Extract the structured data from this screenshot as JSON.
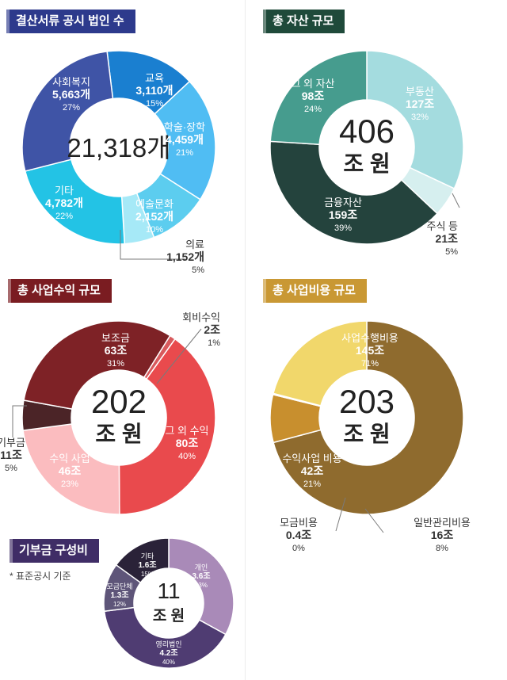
{
  "sections": {
    "filings": {
      "title": "결산서류 공시 법인 수",
      "color": "#2d3a8c"
    },
    "assets": {
      "title": "총 자산 규모",
      "color": "#1f4a3a"
    },
    "revenue": {
      "title": "총 사업수익 규모",
      "color": "#7a1c21"
    },
    "expense": {
      "title": "총 사업비용 규모",
      "color": "#c99834"
    },
    "donation": {
      "title": "기부금 구성비",
      "color": "#3f2d66"
    }
  },
  "note": "* 표준공시 기준",
  "chart_data": [
    {
      "id": "filings",
      "type": "pie",
      "center": "21,318개",
      "series": [
        {
          "label": "교육",
          "value_label": "3,110개",
          "pct": "15%",
          "value": 15,
          "color": "#1a7fd0"
        },
        {
          "label": "학술·장학",
          "value_label": "4,459개",
          "pct": "21%",
          "value": 21,
          "color": "#50bdf3"
        },
        {
          "label": "예술문화",
          "value_label": "2,152개",
          "pct": "10%",
          "value": 10,
          "color": "#5ccdef"
        },
        {
          "label": "의료",
          "value_label": "1,152개",
          "pct": "5%",
          "value": 5,
          "color": "#a6e9f7"
        },
        {
          "label": "기타",
          "value_label": "4,782개",
          "pct": "22%",
          "value": 22,
          "color": "#23c3e5"
        },
        {
          "label": "사회복지",
          "value_label": "5,663개",
          "pct": "27%",
          "value": 27,
          "color": "#3f54a6"
        }
      ]
    },
    {
      "id": "assets",
      "type": "pie",
      "center": [
        "406",
        "조 원"
      ],
      "series": [
        {
          "label": "부동산",
          "value_label": "127조",
          "pct": "32%",
          "value": 32,
          "color": "#a4dcdf"
        },
        {
          "label": "주식 등",
          "value_label": "21조",
          "pct": "5%",
          "value": 5,
          "color": "#d6efef"
        },
        {
          "label": "금융자산",
          "value_label": "159조",
          "pct": "39%",
          "value": 39,
          "color": "#24433d"
        },
        {
          "label": "그 외 자산",
          "value_label": "98조",
          "pct": "24%",
          "value": 24,
          "color": "#469c8e"
        }
      ]
    },
    {
      "id": "revenue",
      "type": "pie",
      "center": [
        "202",
        "조 원"
      ],
      "series": [
        {
          "label": "회비수익",
          "value_label": "2조",
          "pct": "1%",
          "value": 1,
          "color": "#d85a5d"
        },
        {
          "label": "그 외 수익",
          "value_label": "80조",
          "pct": "40%",
          "value": 40,
          "color": "#e94a4d"
        },
        {
          "label": "수익 사업",
          "value_label": "46조",
          "pct": "23%",
          "value": 23,
          "color": "#fbbcbf"
        },
        {
          "label": "기부금",
          "value_label": "11조",
          "pct": "5%",
          "value": 5,
          "color": "#4b2427"
        },
        {
          "label": "보조금",
          "value_label": "63조",
          "pct": "31%",
          "value": 31,
          "color": "#7e2226"
        }
      ]
    },
    {
      "id": "expense",
      "type": "pie",
      "center": [
        "203",
        "조 원"
      ],
      "series": [
        {
          "label": "사업수행비용",
          "value_label": "145조",
          "pct": "71%",
          "value": 71,
          "color": "#8f6b2e"
        },
        {
          "label": "일반관리비용",
          "value_label": "16조",
          "pct": "8%",
          "value": 8,
          "color": "#c88f2e"
        },
        {
          "label": "모금비용",
          "value_label": "0.4조",
          "pct": "0%",
          "value": 0.2,
          "color": "#e6c75a"
        },
        {
          "label": "수익사업 비용",
          "value_label": "42조",
          "pct": "21%",
          "value": 21,
          "color": "#f1d76b"
        }
      ]
    },
    {
      "id": "donation",
      "type": "pie",
      "center": [
        "11",
        "조 원"
      ],
      "series": [
        {
          "label": "개인",
          "value_label": "3.6조",
          "pct": "33%",
          "value": 33,
          "color": "#a98ab8"
        },
        {
          "label": "영리법인",
          "value_label": "4.2조",
          "pct": "40%",
          "value": 40,
          "color": "#4f3c72"
        },
        {
          "label": "모금단체",
          "value_label": "1.3조",
          "pct": "12%",
          "value": 12,
          "color": "#5e5579"
        },
        {
          "label": "기타",
          "value_label": "1.6조",
          "pct": "15%",
          "value": 15,
          "color": "#2a2238"
        }
      ]
    }
  ]
}
